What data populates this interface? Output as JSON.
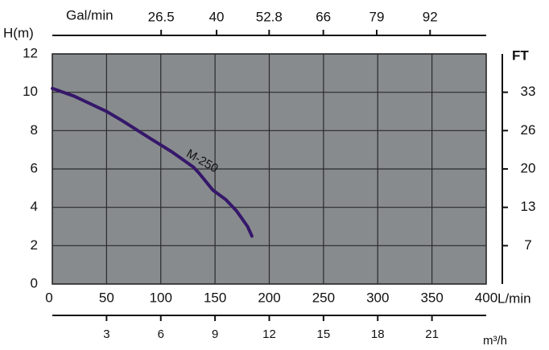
{
  "chart_data": {
    "type": "line",
    "xlabel": "L/min",
    "ylabel": "H(m)",
    "xlim": [
      0,
      400
    ],
    "xticks": [
      0,
      50,
      100,
      150,
      200,
      250,
      300,
      350,
      400
    ],
    "ylim": [
      0,
      12
    ],
    "yticks": [
      0,
      2,
      4,
      6,
      8,
      10,
      12
    ],
    "y2label": "FT",
    "y2lim": [
      0,
      39.37
    ],
    "y2ticks": [
      {
        "value": 6.56,
        "label": "7"
      },
      {
        "value": 13.12,
        "label": "13"
      },
      {
        "value": 19.69,
        "label": "20"
      },
      {
        "value": 26.25,
        "label": "26"
      },
      {
        "value": 32.81,
        "label": "33"
      }
    ],
    "x2label": "Gal/min",
    "x2lim": [
      0,
      105.67
    ],
    "x2ticks": [
      26.5,
      40,
      52.8,
      66,
      79,
      92
    ],
    "x3label": "m³/h",
    "x3lim": [
      0,
      24
    ],
    "x3ticks": [
      3,
      6,
      9,
      12,
      15,
      18,
      21
    ],
    "grid": true,
    "background": "#878b8e",
    "series": [
      {
        "name": "M-250",
        "color": "#35176a",
        "x": [
          0,
          20,
          50,
          65,
          90,
          110,
          130,
          135,
          148,
          160,
          170,
          180,
          184
        ],
        "values": [
          10.2,
          9.8,
          9.0,
          8.5,
          7.6,
          6.9,
          6.1,
          5.8,
          4.9,
          4.4,
          3.8,
          3.0,
          2.5
        ]
      }
    ]
  }
}
